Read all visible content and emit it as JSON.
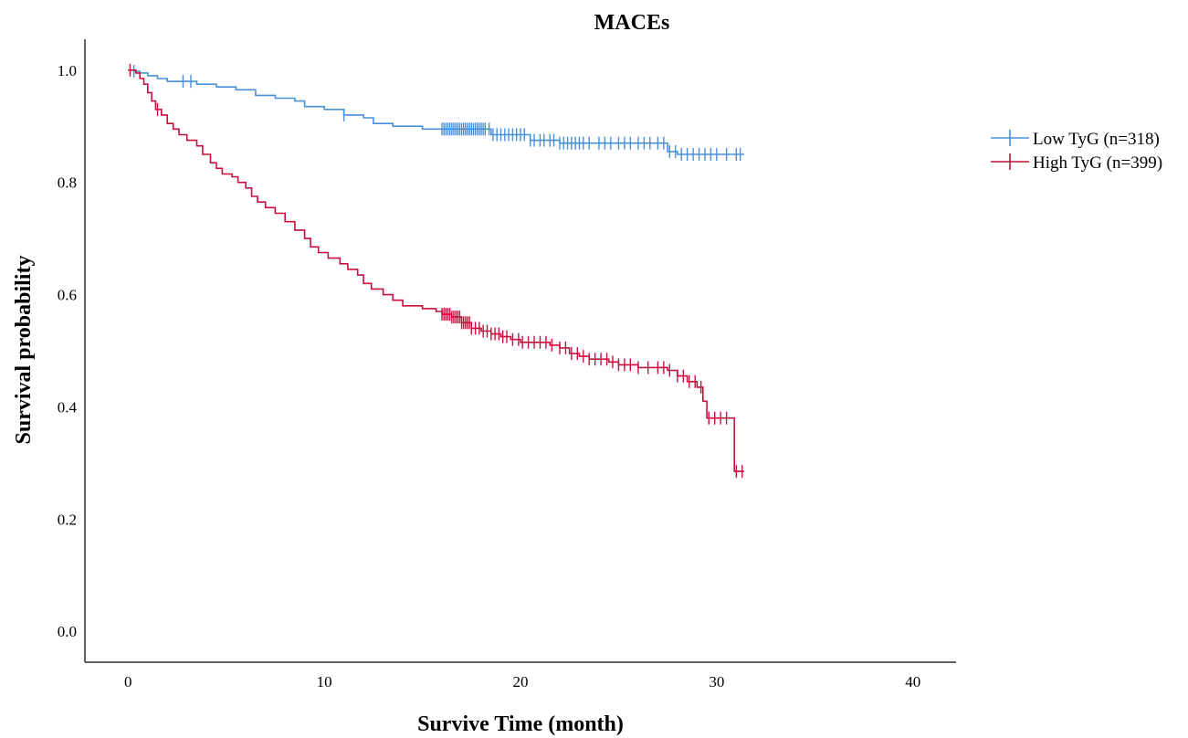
{
  "chart_data": {
    "type": "line",
    "subtype": "kaplan-meier",
    "title": "MACEs",
    "xlabel": "Survive Time (month)",
    "ylabel": "Survival probability",
    "xlim": [
      -2.2,
      42.2
    ],
    "ylim": [
      -0.055,
      1.055
    ],
    "xticks": [
      0,
      10,
      20,
      30,
      40
    ],
    "yticks": [
      0.0,
      0.2,
      0.4,
      0.6,
      0.8,
      1.0
    ],
    "xtick_labels": [
      "0",
      "10",
      "20",
      "30",
      "40"
    ],
    "ytick_labels": [
      "0.0",
      "0.2",
      "0.4",
      "0.6",
      "0.8",
      "1.0"
    ],
    "grid": false,
    "legend_position": "right",
    "series": [
      {
        "name": "Low TyG (n=318)",
        "color": "#4a90d9",
        "steps": [
          [
            0,
            1.0
          ],
          [
            0.3,
            0.998
          ],
          [
            0.6,
            0.995
          ],
          [
            1.0,
            0.99
          ],
          [
            1.5,
            0.985
          ],
          [
            2.0,
            0.98
          ],
          [
            3.5,
            0.975
          ],
          [
            4.5,
            0.97
          ],
          [
            5.5,
            0.965
          ],
          [
            6.5,
            0.955
          ],
          [
            7.5,
            0.95
          ],
          [
            8.5,
            0.945
          ],
          [
            9.0,
            0.935
          ],
          [
            10.0,
            0.93
          ],
          [
            11.0,
            0.92
          ],
          [
            12.0,
            0.915
          ],
          [
            12.5,
            0.905
          ],
          [
            13.5,
            0.9
          ],
          [
            15.0,
            0.895
          ],
          [
            18.5,
            0.885
          ],
          [
            20.5,
            0.875
          ],
          [
            22.0,
            0.87
          ],
          [
            27.5,
            0.855
          ],
          [
            28.0,
            0.85
          ],
          [
            31.4,
            0.85
          ]
        ],
        "censor": [
          0.3,
          2.8,
          3.2,
          11.0,
          16.0,
          16.1,
          16.2,
          16.3,
          16.4,
          16.5,
          16.6,
          16.7,
          16.8,
          16.9,
          17.0,
          17.1,
          17.2,
          17.3,
          17.4,
          17.5,
          17.6,
          17.7,
          17.8,
          17.9,
          18.0,
          18.1,
          18.2,
          18.4,
          18.6,
          18.8,
          19.0,
          19.2,
          19.4,
          19.6,
          19.8,
          20.0,
          20.2,
          20.5,
          20.7,
          21.0,
          21.2,
          21.5,
          21.7,
          22.0,
          22.2,
          22.4,
          22.6,
          22.8,
          23.0,
          23.2,
          23.5,
          24.0,
          24.3,
          24.6,
          25.0,
          25.3,
          25.6,
          26.0,
          26.3,
          26.6,
          27.0,
          27.3,
          27.6,
          27.9,
          28.2,
          28.5,
          28.8,
          29.1,
          29.4,
          29.7,
          30.0,
          30.5,
          31.0,
          31.2
        ]
      },
      {
        "name": "High TyG (n=399)",
        "color": "#c8103e",
        "steps": [
          [
            0,
            1.0
          ],
          [
            0.4,
            0.995
          ],
          [
            0.6,
            0.985
          ],
          [
            0.8,
            0.975
          ],
          [
            1.0,
            0.96
          ],
          [
            1.2,
            0.945
          ],
          [
            1.4,
            0.93
          ],
          [
            1.7,
            0.92
          ],
          [
            2.0,
            0.905
          ],
          [
            2.3,
            0.895
          ],
          [
            2.6,
            0.885
          ],
          [
            3.0,
            0.875
          ],
          [
            3.5,
            0.865
          ],
          [
            3.8,
            0.85
          ],
          [
            4.2,
            0.835
          ],
          [
            4.5,
            0.825
          ],
          [
            4.8,
            0.815
          ],
          [
            5.3,
            0.81
          ],
          [
            5.6,
            0.8
          ],
          [
            6.0,
            0.79
          ],
          [
            6.3,
            0.775
          ],
          [
            6.6,
            0.765
          ],
          [
            7.0,
            0.755
          ],
          [
            7.5,
            0.745
          ],
          [
            8.0,
            0.73
          ],
          [
            8.5,
            0.715
          ],
          [
            9.0,
            0.7
          ],
          [
            9.3,
            0.685
          ],
          [
            9.7,
            0.675
          ],
          [
            10.2,
            0.665
          ],
          [
            10.8,
            0.655
          ],
          [
            11.2,
            0.645
          ],
          [
            11.7,
            0.635
          ],
          [
            12.0,
            0.62
          ],
          [
            12.4,
            0.61
          ],
          [
            13.0,
            0.6
          ],
          [
            13.5,
            0.59
          ],
          [
            14.0,
            0.58
          ],
          [
            15.0,
            0.575
          ],
          [
            15.7,
            0.57
          ],
          [
            16.0,
            0.565
          ],
          [
            16.5,
            0.56
          ],
          [
            17.0,
            0.55
          ],
          [
            17.5,
            0.54
          ],
          [
            18.0,
            0.535
          ],
          [
            18.5,
            0.53
          ],
          [
            19.0,
            0.525
          ],
          [
            19.5,
            0.52
          ],
          [
            20.0,
            0.515
          ],
          [
            21.5,
            0.51
          ],
          [
            22.0,
            0.505
          ],
          [
            22.5,
            0.495
          ],
          [
            23.0,
            0.49
          ],
          [
            23.5,
            0.485
          ],
          [
            24.5,
            0.48
          ],
          [
            25.0,
            0.475
          ],
          [
            26.0,
            0.47
          ],
          [
            27.5,
            0.465
          ],
          [
            28.0,
            0.455
          ],
          [
            28.5,
            0.445
          ],
          [
            29.0,
            0.435
          ],
          [
            29.3,
            0.41
          ],
          [
            29.5,
            0.38
          ],
          [
            30.8,
            0.38
          ],
          [
            30.9,
            0.285
          ],
          [
            31.4,
            0.285
          ]
        ],
        "censor": [
          0.1,
          1.5,
          16.0,
          16.1,
          16.2,
          16.3,
          16.4,
          16.5,
          16.6,
          16.7,
          16.8,
          16.9,
          17.0,
          17.1,
          17.2,
          17.3,
          17.4,
          17.5,
          17.7,
          17.9,
          18.1,
          18.3,
          18.5,
          18.7,
          18.9,
          19.1,
          19.3,
          19.6,
          19.9,
          20.1,
          20.4,
          20.7,
          21.0,
          21.3,
          21.6,
          22.0,
          22.3,
          22.6,
          22.9,
          23.2,
          23.5,
          23.8,
          24.1,
          24.4,
          24.7,
          25.0,
          25.3,
          25.6,
          26.0,
          26.5,
          27.0,
          27.3,
          27.6,
          28.0,
          28.3,
          28.6,
          28.9,
          29.2,
          29.6,
          29.9,
          30.2,
          30.5,
          31.0,
          31.3
        ]
      }
    ]
  }
}
